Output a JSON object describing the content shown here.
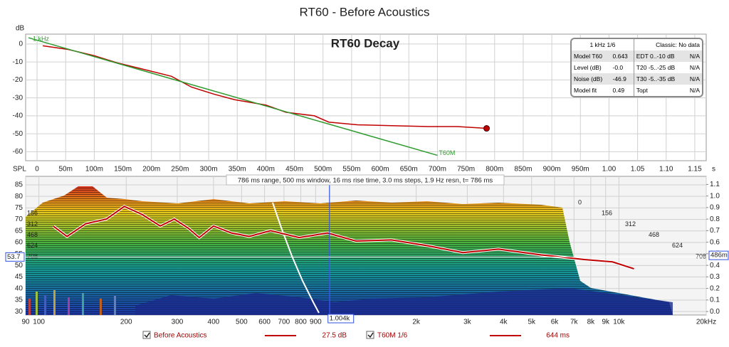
{
  "title": "RT60 - Before Acoustics",
  "chart_data": [
    {
      "type": "line",
      "title": "RT60 Decay",
      "ylabel": "dB",
      "xlabel": "s",
      "xlim": [
        -0.02,
        1.17
      ],
      "ylim": [
        -65,
        5.5
      ],
      "grid": true,
      "xticks": [
        0,
        {
          "value": 0.05,
          "label": "50m"
        },
        {
          "value": 0.1,
          "label": "100m"
        },
        {
          "value": 0.15,
          "label": "150m"
        },
        {
          "value": 0.2,
          "label": "200m"
        },
        {
          "value": 0.25,
          "label": "250m"
        },
        {
          "value": 0.3,
          "label": "300m"
        },
        {
          "value": 0.35,
          "label": "350m"
        },
        {
          "value": 0.4,
          "label": "400m"
        },
        {
          "value": 0.45,
          "label": "450m"
        },
        {
          "value": 0.5,
          "label": "500m"
        },
        {
          "value": 0.55,
          "label": "550m"
        },
        {
          "value": 0.6,
          "label": "600m"
        },
        {
          "value": 0.65,
          "label": "650m"
        },
        {
          "value": 0.7,
          "label": "700m"
        },
        {
          "value": 0.75,
          "label": "750m"
        },
        {
          "value": 0.8,
          "label": "800m"
        },
        {
          "value": 0.85,
          "label": "850m"
        },
        {
          "value": 0.9,
          "label": "900m"
        },
        {
          "value": 0.95,
          "label": "950m"
        },
        {
          "value": 1,
          "label": "1.00"
        },
        {
          "value": 1.05,
          "label": "1.05"
        },
        {
          "value": 1.1,
          "label": "1.10"
        },
        {
          "value": 1.15,
          "label": "1.15"
        }
      ],
      "yticks": [
        0,
        -10,
        -20,
        -30,
        -40,
        -50,
        -60
      ],
      "annotations": [
        "1 kHz"
      ],
      "series": [
        {
          "name": "Before Acoustics",
          "color": "#c00000",
          "end_marker": true,
          "x": [
            0.01,
            0.054,
            0.1,
            0.14,
            0.185,
            0.235,
            0.27,
            0.31,
            0.345,
            0.4,
            0.435,
            0.485,
            0.51,
            0.56,
            0.62,
            0.685,
            0.735,
            0.786
          ],
          "values": [
            -1,
            -3,
            -6.5,
            -10.5,
            -14,
            -18,
            -24,
            -28,
            -31,
            -34,
            -38,
            -40,
            -43.5,
            -45,
            -45.5,
            -46,
            -46,
            -47
          ]
        },
        {
          "name": "T60M",
          "color": "#2e9b2e",
          "x": [
            -0.015,
            0.7
          ],
          "values": [
            3.5,
            -62
          ]
        }
      ]
    },
    {
      "type": "line",
      "xscale": "log",
      "ylabel": "SPL",
      "subtitle": "786 ms range, 500 ms window, 16 ms rise time, 3.0 ms steps,  1.9 Hz resn, t= 786 ms",
      "xlim": [
        90,
        20000
      ],
      "ylim": [
        28.5,
        88.7
      ],
      "y2lim": [
        -0.03,
        1.17
      ],
      "grid": true,
      "xticks": [
        90,
        100,
        200,
        300,
        400,
        500,
        600,
        700,
        800,
        900,
        {
          "value": 2000,
          "label": "2k"
        },
        {
          "value": 3000,
          "label": "3k"
        },
        {
          "value": 4000,
          "label": "4k"
        },
        {
          "value": 5000,
          "label": "5k"
        },
        {
          "value": 6000,
          "label": "6k"
        },
        {
          "value": 7000,
          "label": "7k"
        },
        {
          "value": 8000,
          "label": "8k"
        },
        {
          "value": 9000,
          "label": "9k"
        },
        {
          "value": 10000,
          "label": "10k"
        },
        {
          "value": 20000,
          "label": "20kHz"
        }
      ],
      "yticks": [
        30,
        35,
        40,
        45,
        50,
        55,
        60,
        65,
        70,
        75,
        80,
        85
      ],
      "y2ticks": [
        {
          "value": 0,
          "label": "0.0"
        },
        0.1,
        0.2,
        0.3,
        0.4,
        0.5,
        0.6,
        0.7,
        0.8,
        0.9,
        {
          "value": 1,
          "label": "1.0"
        },
        1.1
      ],
      "slice_labels": [
        "0",
        "156",
        "312",
        "468",
        "624",
        "708"
      ],
      "cursor": {
        "x": {
          "value": 1004,
          "label": "1.004k"
        },
        "y": 53.7,
        "y2": {
          "value": 0.486,
          "label": "486m"
        }
      },
      "series": [
        {
          "name": "T60M 1/6",
          "color": "#c00000",
          "axis": "y2",
          "x": [
            112,
            125,
            145,
            171,
            197,
            227,
            262,
            293,
            328,
            357,
            400,
            461,
            531,
            629,
            789,
            989,
            1239,
            1643,
            2183,
            2897,
            3846,
            5400,
            7590,
            9500,
            11270
          ],
          "values": [
            0.74,
            0.65,
            0.76,
            0.8,
            0.91,
            0.84,
            0.74,
            0.8,
            0.72,
            0.64,
            0.74,
            0.68,
            0.65,
            0.7,
            0.64,
            0.68,
            0.61,
            0.62,
            0.57,
            0.51,
            0.54,
            0.49,
            0.45,
            0.43,
            0.37
          ]
        }
      ]
    }
  ],
  "legend_values": [
    "27.5 dB",
    "644 ms"
  ],
  "info_table": {
    "header": [
      "1 kHz 1/6",
      "Classic: No data"
    ],
    "rows": [
      [
        "Model T60",
        "0.643",
        "EDT  0..-10 dB",
        "N/A"
      ],
      [
        "Level (dB)",
        "-0.0",
        "T20 -5..-25 dB",
        "N/A"
      ],
      [
        "Noise (dB)",
        "-46.9",
        "T30 -5..-35 dB",
        "N/A"
      ],
      [
        "Model fit",
        "0.49",
        "Topt",
        "N/A"
      ]
    ]
  }
}
